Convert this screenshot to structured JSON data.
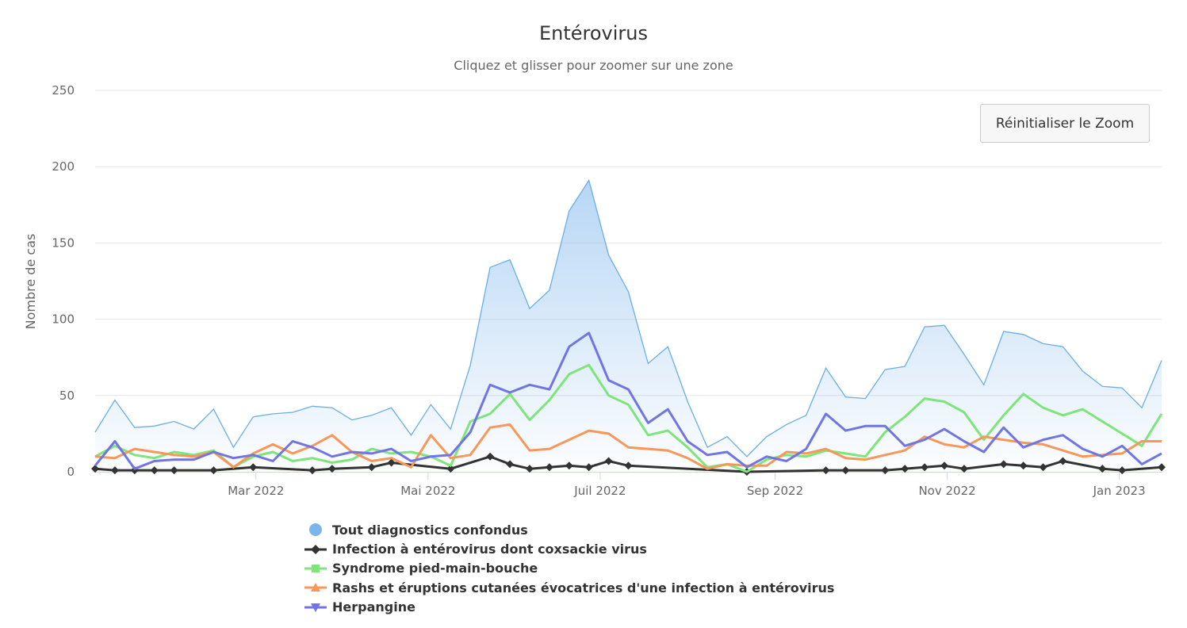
{
  "chart_data": {
    "type": "line",
    "title": "Entérovirus",
    "subtitle": "Cliquez et glisser pour zoomer sur une zone",
    "ylabel": "Nombre de cas",
    "xlabel": "",
    "ylim": [
      0,
      250
    ],
    "yticks": [
      "0",
      "50",
      "100",
      "150",
      "200",
      "250"
    ],
    "xticks": [
      {
        "date": "2022-03-01",
        "label": "Mar 2022"
      },
      {
        "date": "2022-05-01",
        "label": "Mai 2022"
      },
      {
        "date": "2022-07-01",
        "label": "Juil 2022"
      },
      {
        "date": "2022-09-01",
        "label": "Sep 2022"
      },
      {
        "date": "2022-11-01",
        "label": "Nov 2022"
      },
      {
        "date": "2023-01-01",
        "label": "Jan 2023"
      }
    ],
    "grid": true,
    "legend_position": "bottom",
    "x": [
      "2022-01-03",
      "2022-01-10",
      "2022-01-17",
      "2022-01-24",
      "2022-01-31",
      "2022-02-07",
      "2022-02-14",
      "2022-02-21",
      "2022-02-28",
      "2022-03-07",
      "2022-03-14",
      "2022-03-21",
      "2022-03-28",
      "2022-04-04",
      "2022-04-11",
      "2022-04-18",
      "2022-04-25",
      "2022-05-02",
      "2022-05-09",
      "2022-05-16",
      "2022-05-23",
      "2022-05-30",
      "2022-06-06",
      "2022-06-13",
      "2022-06-20",
      "2022-06-27",
      "2022-07-04",
      "2022-07-11",
      "2022-07-18",
      "2022-07-25",
      "2022-08-01",
      "2022-08-08",
      "2022-08-15",
      "2022-08-22",
      "2022-08-29",
      "2022-09-05",
      "2022-09-12",
      "2022-09-19",
      "2022-09-26",
      "2022-10-03",
      "2022-10-10",
      "2022-10-17",
      "2022-10-24",
      "2022-10-31",
      "2022-11-07",
      "2022-11-14",
      "2022-11-21",
      "2022-11-28",
      "2022-12-05",
      "2022-12-12",
      "2022-12-19",
      "2022-12-26",
      "2023-01-02",
      "2023-01-09",
      "2023-01-16"
    ],
    "series": [
      {
        "name": "Tout diagnostics confondus",
        "type": "area",
        "color": "#7cb5ec",
        "marker": "circle",
        "values": [
          26,
          47,
          29,
          30,
          33,
          28,
          41,
          16,
          36,
          38,
          39,
          43,
          42,
          34,
          37,
          42,
          24,
          44,
          28,
          70,
          134,
          139,
          107,
          119,
          171,
          191,
          142,
          118,
          71,
          82,
          46,
          16,
          23,
          10,
          23,
          31,
          37,
          68,
          49,
          48,
          67,
          69,
          95,
          96,
          77,
          57,
          92,
          90,
          84,
          82,
          66,
          56,
          55,
          42,
          73
        ]
      },
      {
        "name": "Infection à entérovirus dont coxsackie virus",
        "type": "line",
        "color": "#333333",
        "marker": "diamond",
        "values": [
          2,
          1,
          1,
          1,
          1,
          null,
          1,
          null,
          3,
          null,
          null,
          1,
          2,
          null,
          3,
          6,
          null,
          null,
          2,
          null,
          10,
          5,
          2,
          3,
          4,
          3,
          7,
          4,
          null,
          null,
          null,
          null,
          null,
          0,
          null,
          null,
          null,
          1,
          1,
          null,
          1,
          2,
          3,
          4,
          2,
          null,
          5,
          4,
          3,
          7,
          null,
          2,
          1,
          null,
          3
        ]
      },
      {
        "name": "Syndrome pied-main-bouche",
        "type": "line",
        "color": "#7ee57a",
        "marker": "square",
        "values": [
          10,
          17,
          11,
          9,
          13,
          11,
          14,
          3,
          10,
          13,
          7,
          9,
          6,
          8,
          15,
          12,
          13,
          10,
          4,
          33,
          38,
          51,
          34,
          47,
          64,
          70,
          50,
          44,
          24,
          27,
          16,
          3,
          5,
          0,
          8,
          11,
          10,
          14,
          12,
          10,
          26,
          36,
          48,
          46,
          39,
          21,
          37,
          51,
          42,
          37,
          41,
          33,
          25,
          17,
          38
        ]
      },
      {
        "name": "Rashs et éruptions cutanées évocatrices d'une infection à entérovirus",
        "type": "line",
        "color": "#f7975a",
        "marker": "triangle",
        "values": [
          10,
          9,
          15,
          13,
          11,
          10,
          13,
          3,
          12,
          18,
          12,
          17,
          24,
          13,
          7,
          9,
          3,
          24,
          9,
          11,
          29,
          31,
          14,
          15,
          21,
          27,
          25,
          16,
          15,
          14,
          9,
          2,
          5,
          4,
          4,
          13,
          12,
          15,
          9,
          8,
          11,
          14,
          23,
          18,
          16,
          23,
          21,
          19,
          18,
          14,
          10,
          11,
          12,
          20,
          20
        ]
      },
      {
        "name": "Herpangine",
        "type": "line",
        "color": "#7175e3",
        "marker": "triangle-down",
        "values": [
          4,
          20,
          2,
          7,
          8,
          8,
          13,
          9,
          11,
          7,
          20,
          16,
          10,
          13,
          12,
          15,
          7,
          10,
          11,
          26,
          57,
          52,
          57,
          54,
          82,
          91,
          60,
          54,
          32,
          41,
          20,
          11,
          13,
          3,
          10,
          7,
          15,
          38,
          27,
          30,
          30,
          17,
          21,
          28,
          20,
          13,
          29,
          16,
          21,
          24,
          15,
          10,
          17,
          5,
          12
        ]
      }
    ]
  },
  "reset_zoom_label": "Réinitialiser le Zoom"
}
